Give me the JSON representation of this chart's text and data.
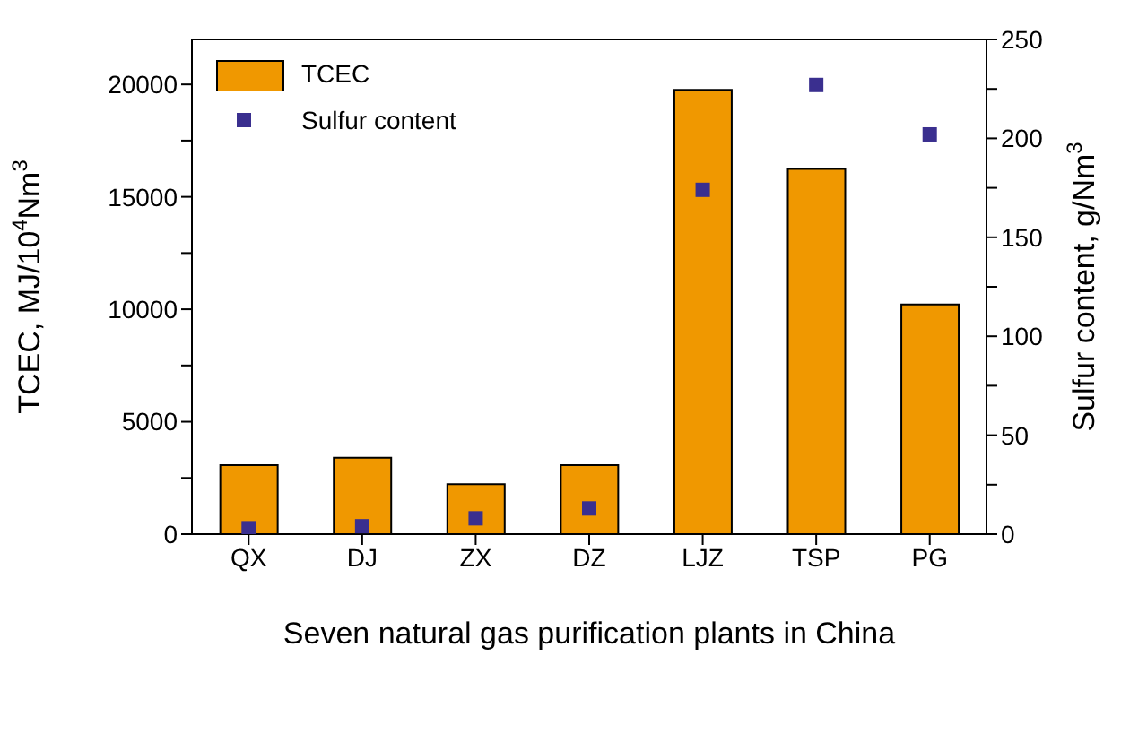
{
  "chart_data": {
    "type": "bar",
    "xlabel": "Seven natural gas purification plants in China",
    "ylabel": "TCEC, MJ/10$^{4}$Nm$^{3}$",
    "y2label": "Sulfur content, g/Nm$^{3}$",
    "categories": [
      "QX",
      "DJ",
      "ZX",
      "DZ",
      "LJZ",
      "TSP",
      "PG"
    ],
    "series": [
      {
        "name": "TCEC",
        "color": "#f09800",
        "values": [
          3070,
          3400,
          2220,
          3070,
          19760,
          16240,
          10210
        ]
      },
      {
        "name": "Sulfur content",
        "type": "scatter",
        "axis": "y2",
        "color": "#3a2f8f",
        "values": [
          3,
          4,
          8,
          13,
          174,
          227,
          202
        ]
      }
    ],
    "ylim": [
      0,
      22000
    ],
    "yticks": [
      0,
      {
        "value": 2500,
        "label": null
      },
      5000,
      {
        "value": 7500,
        "label": null
      },
      10000,
      {
        "value": 12500,
        "label": null
      },
      15000,
      {
        "value": 17500,
        "label": null
      },
      20000
    ],
    "y2lim": [
      0,
      250
    ],
    "y2ticks": [
      0,
      {
        "value": 25,
        "label": null
      },
      50,
      {
        "value": 75,
        "label": null
      },
      100,
      {
        "value": 125,
        "label": null
      },
      150,
      {
        "value": 175,
        "label": null
      },
      200,
      {
        "value": 225,
        "label": null
      },
      250
    ],
    "marker": "square",
    "grid": false,
    "legend": "top left"
  }
}
